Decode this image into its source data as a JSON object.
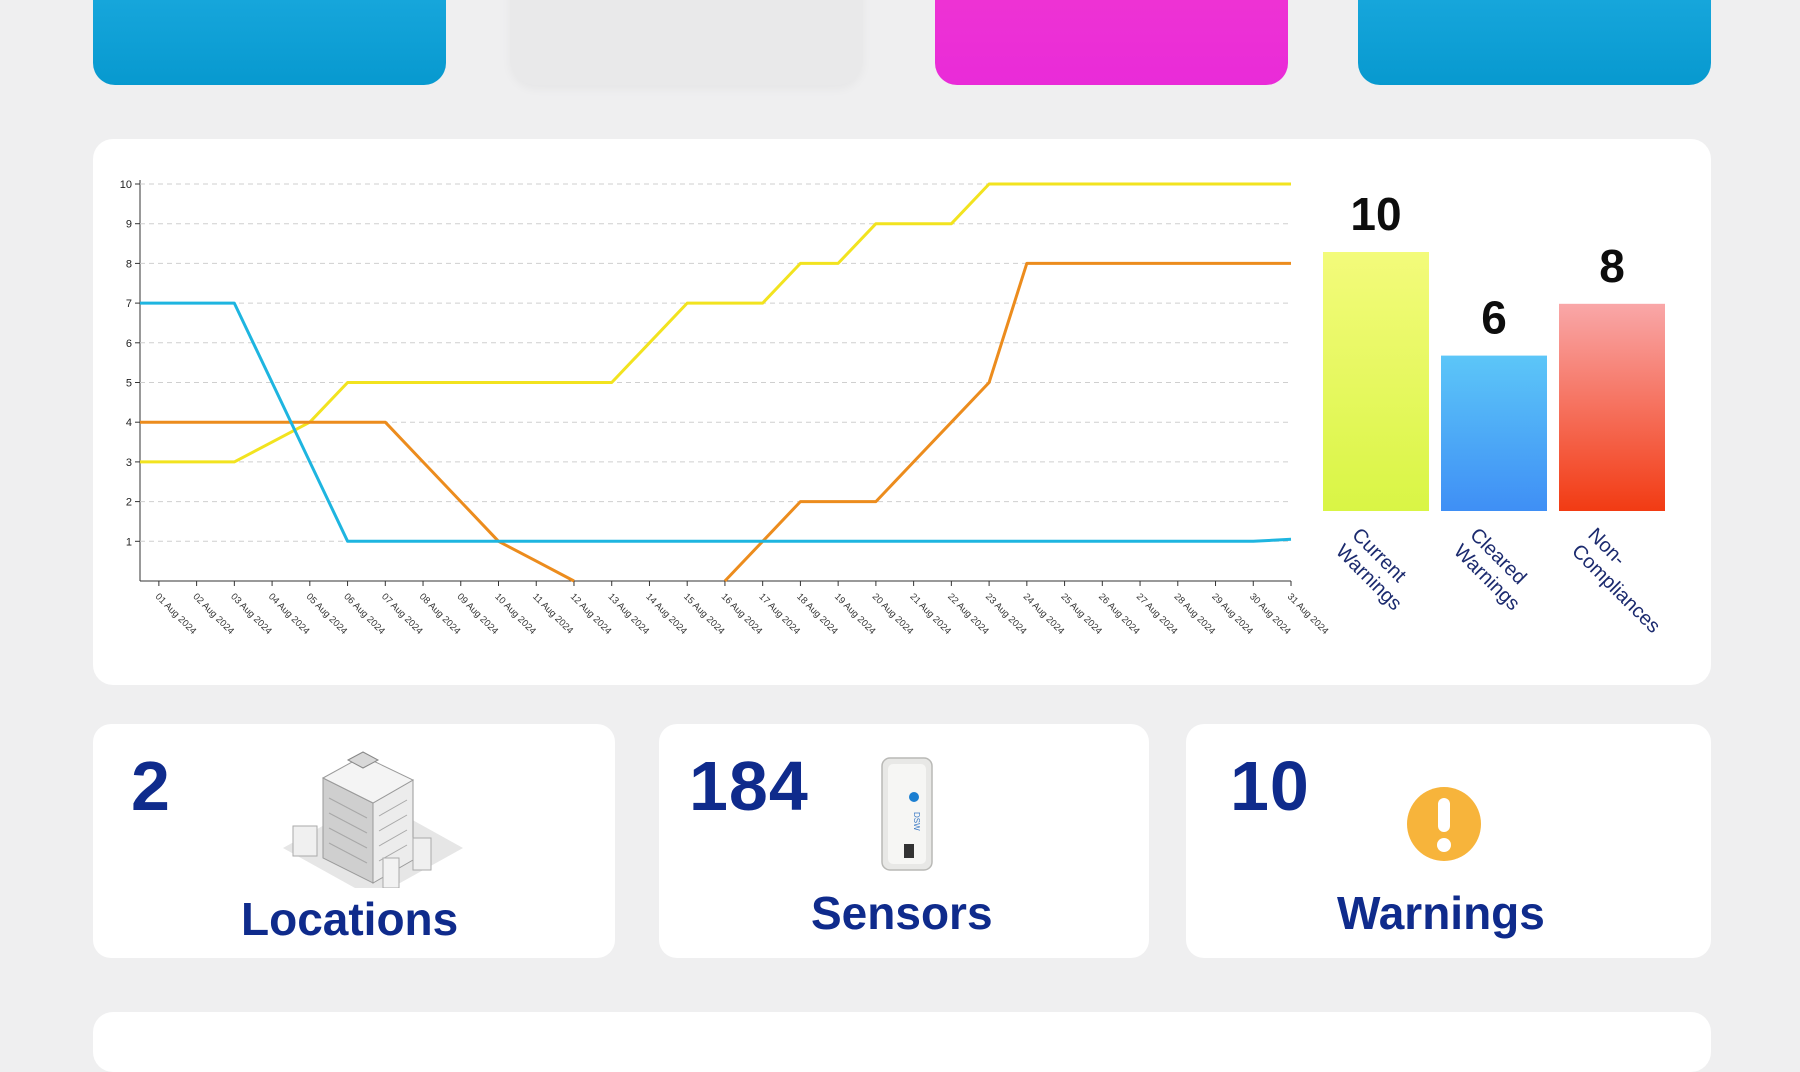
{
  "chart_data": [
    {
      "type": "line",
      "x": [
        "01 Aug 2024",
        "02 Aug 2024",
        "03 Aug 2024",
        "04 Aug 2024",
        "05 Aug 2024",
        "06 Aug 2024",
        "07 Aug 2024",
        "08 Aug 2024",
        "09 Aug 2024",
        "10 Aug 2024",
        "11 Aug 2024",
        "12 Aug 2024",
        "13 Aug 2024",
        "14 Aug 2024",
        "15 Aug 2024",
        "16 Aug 2024",
        "17 Aug 2024",
        "18 Aug 2024",
        "19 Aug 2024",
        "20 Aug 2024",
        "21 Aug 2024",
        "22 Aug 2024",
        "23 Aug 2024",
        "24 Aug 2024",
        "25 Aug 2024",
        "26 Aug 2024",
        "27 Aug 2024",
        "28 Aug 2024",
        "29 Aug 2024",
        "30 Aug 2024",
        "31 Aug 2024"
      ],
      "ylim": [
        0,
        10
      ],
      "yticks": [
        1,
        2,
        3,
        4,
        5,
        6,
        7,
        8,
        9,
        10
      ],
      "grid": true,
      "series": [
        {
          "color": "#f2e31f",
          "start": 3,
          "values": [
            3,
            3,
            3,
            3.5,
            4,
            5,
            5,
            5,
            5,
            5,
            5,
            5,
            5,
            6,
            7,
            7,
            7,
            8,
            8,
            9,
            9,
            9,
            10,
            10,
            10,
            10,
            10,
            10,
            10,
            10,
            10
          ]
        },
        {
          "color": "#ec8c1d",
          "start": 4,
          "values": [
            4,
            4,
            4,
            4,
            4,
            4,
            4,
            3,
            2,
            1,
            0.5,
            0,
            null,
            null,
            null,
            0,
            1,
            2,
            2,
            2,
            3,
            4,
            5,
            8,
            8,
            8,
            8,
            8,
            8,
            8,
            8
          ]
        },
        {
          "color": "#1eb5e0",
          "start": 7,
          "values": [
            7,
            7,
            7,
            5,
            3,
            1,
            1,
            1,
            1,
            1,
            1,
            1,
            1,
            1,
            1,
            1,
            1,
            1,
            1,
            1,
            1,
            1,
            1,
            1,
            1,
            1,
            1,
            1,
            1,
            1,
            1.05
          ]
        }
      ]
    },
    {
      "type": "bar",
      "categories": [
        "Current Warnings",
        "Cleared Warnings",
        "Non-Compliances"
      ],
      "category_lines": [
        [
          "Current",
          "Warnings"
        ],
        [
          "Cleared",
          "Warnings"
        ],
        [
          "Non-",
          "Compliances"
        ]
      ],
      "values": [
        10,
        6,
        8
      ],
      "value_labels": [
        "10",
        "6",
        "8"
      ],
      "ylim": [
        0,
        10
      ],
      "colors": [
        [
          "#f3fb7b",
          "#d9f545"
        ],
        [
          "#5cc6f8",
          "#3f8ff5"
        ],
        [
          "#f9a7a8",
          "#f23b13"
        ]
      ]
    }
  ],
  "stats": {
    "locations": {
      "value": "2",
      "label": "Locations",
      "icon": "building-icon"
    },
    "sensors": {
      "value": "184",
      "label": "Sensors",
      "icon": "sensor-device-icon"
    },
    "warnings": {
      "value": "10",
      "label": "Warnings",
      "icon": "warning-icon"
    }
  },
  "colors": {
    "accent": "#0f2b8c",
    "cyan_card": "#0a9fd5",
    "magenta_card": "#ec30d6",
    "warning": "#f7b43b"
  }
}
